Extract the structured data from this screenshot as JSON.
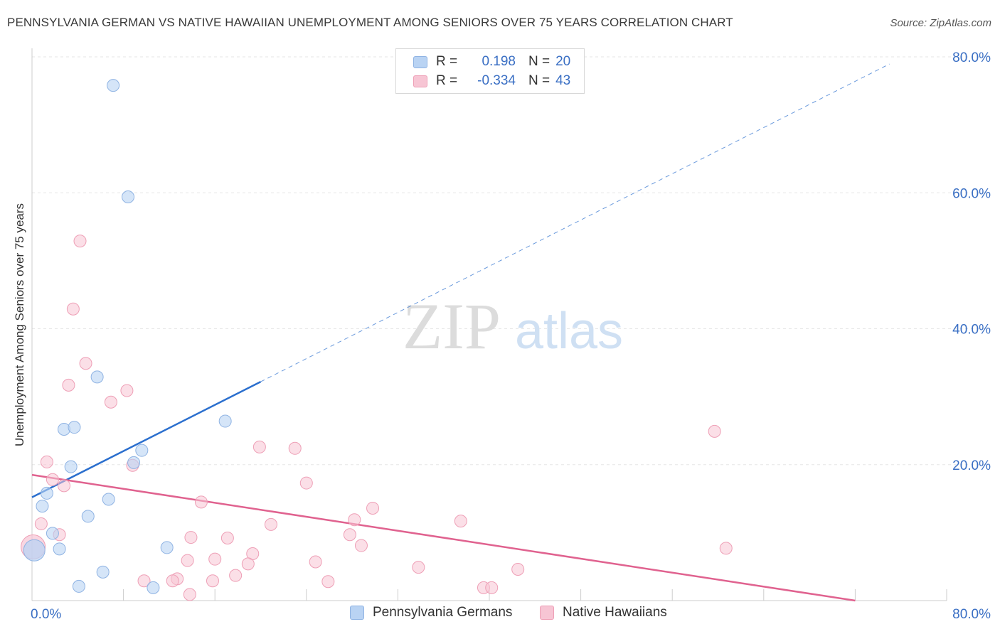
{
  "title": "PENNSYLVANIA GERMAN VS NATIVE HAWAIIAN UNEMPLOYMENT AMONG SENIORS OVER 75 YEARS CORRELATION CHART",
  "source": "Source: ZipAtlas.com",
  "watermark": {
    "zip": "ZIP",
    "atlas": "atlas"
  },
  "legend": {
    "rows": [
      {
        "r_label": "R =",
        "r_value": "0.198",
        "n_label": "N =",
        "n_value": "20"
      },
      {
        "r_label": "R =",
        "r_value": "-0.334",
        "n_label": "N =",
        "n_value": "43"
      }
    ]
  },
  "colors": {
    "blue_fill": "#b9d3f3",
    "blue_stroke": "#8fb3e3",
    "blue_line": "#2b6fce",
    "pink_fill": "#f7c5d4",
    "pink_stroke": "#ee9fb6",
    "pink_line": "#e0628f",
    "grid": "#e6e6e6",
    "axis_text": "#3a6fc4"
  },
  "chart_data": {
    "type": "scatter",
    "title": "PENNSYLVANIA GERMAN VS NATIVE HAWAIIAN UNEMPLOYMENT AMONG SENIORS OVER 75 YEARS CORRELATION CHART",
    "xlabel": "",
    "ylabel": "Unemployment Among Seniors over 75 years",
    "xlim": [
      0,
      80
    ],
    "ylim": [
      0,
      80
    ],
    "x_tick_labels": [
      "0.0%",
      "80.0%"
    ],
    "y_tick_labels": [
      "20.0%",
      "40.0%",
      "60.0%",
      "80.0%"
    ],
    "y_ticks": [
      20,
      40,
      60,
      80
    ],
    "x_minor_ticks": [
      8,
      16,
      24,
      32,
      40,
      48,
      56,
      64,
      72,
      80
    ],
    "series": [
      {
        "name": "Pennsylvania Germans",
        "r": 0.198,
        "n": 20,
        "trend": {
          "x0": 0,
          "y0": 15.2,
          "x1": 20,
          "y1": 32.2,
          "dash_to_x": 75
        },
        "points": [
          [
            7.1,
            75.8
          ],
          [
            8.4,
            59.4
          ],
          [
            5.7,
            32.9
          ],
          [
            16.9,
            26.4
          ],
          [
            2.8,
            25.2
          ],
          [
            3.7,
            25.5
          ],
          [
            9.6,
            22.1
          ],
          [
            3.4,
            19.7
          ],
          [
            8.9,
            20.3
          ],
          [
            1.3,
            15.8
          ],
          [
            6.7,
            14.9
          ],
          [
            0.9,
            13.9
          ],
          [
            4.9,
            12.4
          ],
          [
            1.8,
            9.9
          ],
          [
            2.4,
            7.6
          ],
          [
            11.8,
            7.8
          ],
          [
            6.2,
            4.2
          ],
          [
            4.1,
            2.1
          ],
          [
            10.6,
            1.9
          ],
          [
            0.2,
            7.4
          ]
        ]
      },
      {
        "name": "Native Hawaiians",
        "r": -0.334,
        "n": 43,
        "trend": {
          "x0": 0,
          "y0": 18.5,
          "x1": 72,
          "y1": 0
        },
        "points": [
          [
            4.2,
            52.9
          ],
          [
            3.6,
            42.9
          ],
          [
            4.7,
            34.9
          ],
          [
            3.2,
            31.7
          ],
          [
            8.3,
            30.9
          ],
          [
            6.9,
            29.2
          ],
          [
            59.7,
            24.9
          ],
          [
            19.9,
            22.6
          ],
          [
            23.0,
            22.4
          ],
          [
            1.3,
            20.4
          ],
          [
            8.8,
            19.9
          ],
          [
            1.8,
            17.8
          ],
          [
            2.8,
            16.9
          ],
          [
            24.0,
            17.3
          ],
          [
            14.8,
            14.5
          ],
          [
            29.8,
            13.6
          ],
          [
            37.5,
            11.7
          ],
          [
            28.2,
            11.9
          ],
          [
            0.8,
            11.3
          ],
          [
            20.9,
            11.2
          ],
          [
            2.4,
            9.7
          ],
          [
            13.9,
            9.3
          ],
          [
            17.1,
            9.2
          ],
          [
            27.8,
            9.7
          ],
          [
            28.8,
            8.1
          ],
          [
            60.7,
            7.7
          ],
          [
            19.3,
            6.9
          ],
          [
            13.6,
            5.9
          ],
          [
            16.0,
            6.1
          ],
          [
            24.8,
            5.7
          ],
          [
            18.9,
            5.4
          ],
          [
            33.8,
            4.9
          ],
          [
            42.5,
            4.6
          ],
          [
            17.8,
            3.7
          ],
          [
            12.7,
            3.2
          ],
          [
            9.8,
            2.9
          ],
          [
            15.8,
            2.9
          ],
          [
            12.3,
            2.9
          ],
          [
            25.9,
            2.8
          ],
          [
            39.5,
            1.9
          ],
          [
            40.2,
            1.9
          ],
          [
            13.8,
            0.9
          ],
          [
            0.1,
            7.9
          ]
        ]
      }
    ]
  },
  "bottom_legend": [
    "Pennsylvania Germans",
    "Native Hawaiians"
  ]
}
